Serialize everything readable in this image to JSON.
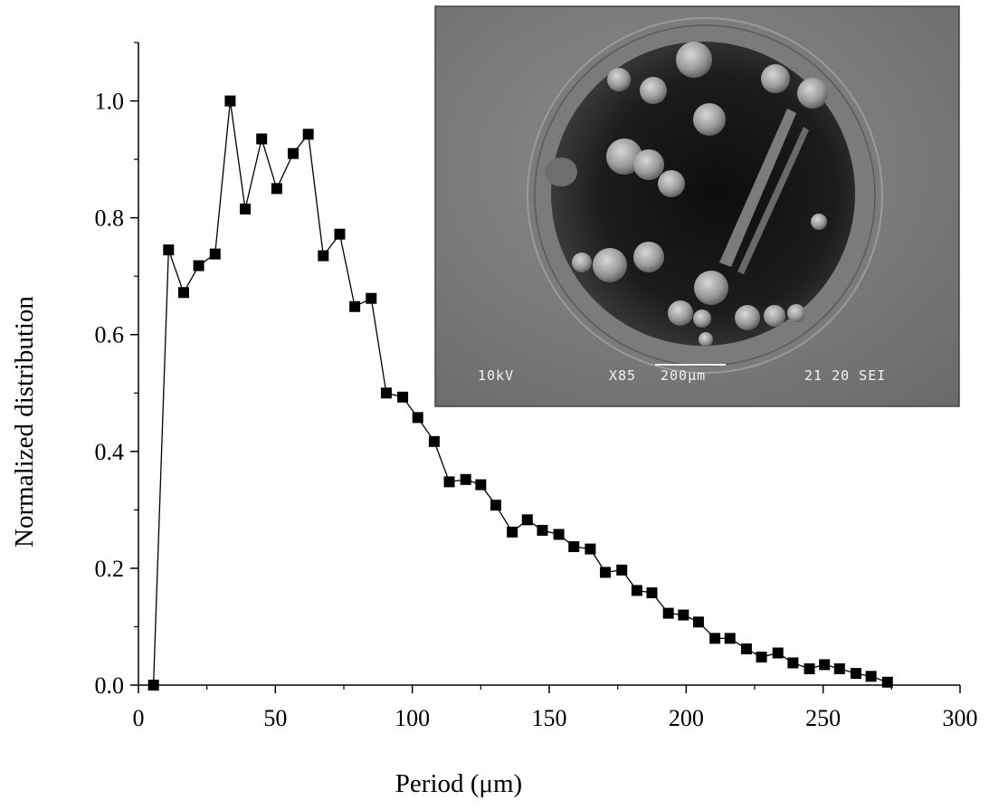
{
  "chart_data": {
    "type": "scatter",
    "connected": true,
    "marker": "filled-square",
    "xlabel": "Period (μm)",
    "ylabel": "Normalized distribution",
    "xlim": [
      0,
      300
    ],
    "ylim": [
      0,
      1.1
    ],
    "x_ticks": [
      0,
      50,
      100,
      150,
      200,
      250,
      300
    ],
    "x_tick_labels": [
      "0",
      "50",
      "100",
      "150",
      "200",
      "250",
      "300"
    ],
    "y_ticks": [
      0.0,
      0.2,
      0.4,
      0.6,
      0.8,
      1.0
    ],
    "y_tick_labels": [
      "0.0",
      "0.2",
      "0.4",
      "0.6",
      "0.8",
      "1.0"
    ],
    "color": "#000000",
    "series": [
      {
        "x": [
          5.5,
          11,
          16.5,
          22,
          28,
          33.5,
          39,
          45,
          50.5,
          56.5,
          62,
          67.5,
          73.5,
          79,
          85,
          90.5,
          96.5,
          102,
          108,
          113.5,
          119.5,
          125,
          130.5,
          136.5,
          142,
          147.5,
          153.5,
          159,
          165,
          170.5,
          176.5,
          182,
          187.5,
          193.5,
          199,
          204.5,
          210.5,
          216,
          222,
          227.5,
          233.5,
          239,
          245,
          250.5,
          256,
          262,
          267.5,
          273.5
        ],
        "y": [
          0.0,
          0.745,
          0.672,
          0.718,
          0.738,
          1.0,
          0.815,
          0.935,
          0.85,
          0.91,
          0.943,
          0.735,
          0.772,
          0.648,
          0.662,
          0.5,
          0.493,
          0.458,
          0.417,
          0.348,
          0.352,
          0.343,
          0.308,
          0.262,
          0.283,
          0.265,
          0.258,
          0.237,
          0.233,
          0.193,
          0.197,
          0.162,
          0.158,
          0.123,
          0.12,
          0.108,
          0.08,
          0.08,
          0.062,
          0.048,
          0.055,
          0.038,
          0.028,
          0.035,
          0.028,
          0.02,
          0.015,
          0.005
        ]
      }
    ],
    "grid": false,
    "legend": "none"
  },
  "inset": {
    "image": "sem-micrograph",
    "info_bar": {
      "voltage": "10kV",
      "magnification": "X85",
      "scale": "200μm",
      "code": "21 20 SEI"
    }
  }
}
